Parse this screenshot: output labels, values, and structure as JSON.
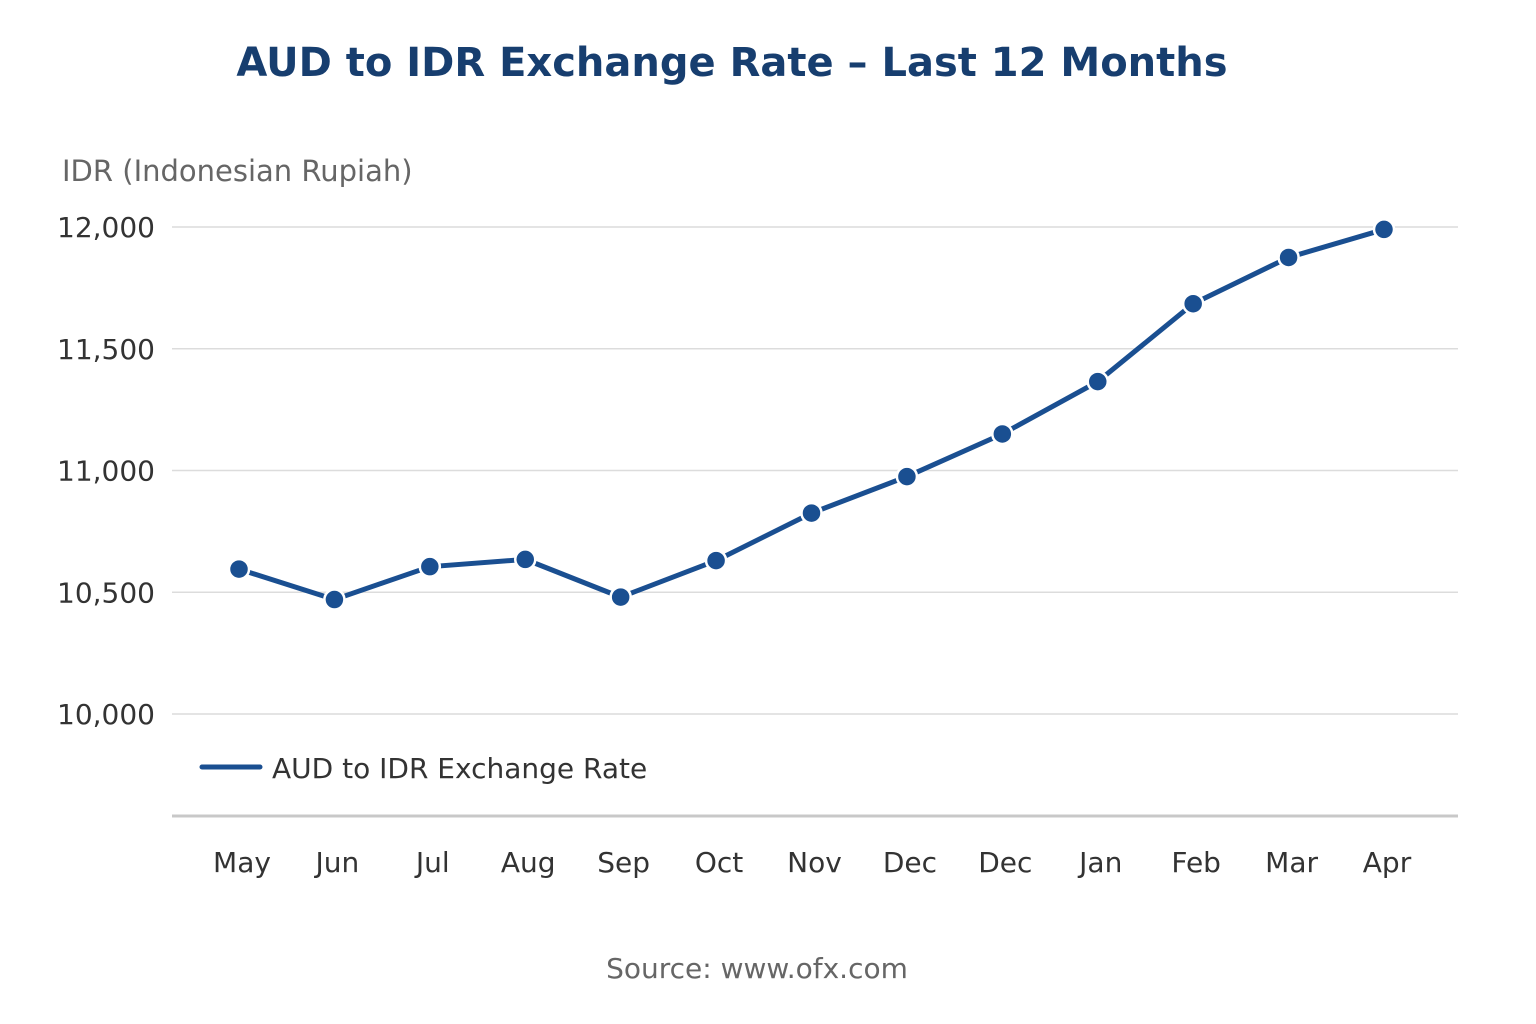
{
  "chart_data": {
    "type": "line",
    "title": "AUD to IDR Exchange Rate – Last 12 Months",
    "ylabel": "IDR (Indonesian Rupiah)",
    "xlabel": "",
    "categories": [
      "May",
      "Jun",
      "Jul",
      "Aug",
      "Sep",
      "Oct",
      "Nov",
      "Dec",
      "Dec",
      "Jan",
      "Feb",
      "Mar",
      "Apr"
    ],
    "series": [
      {
        "name": "AUD to IDR Exchange Rate",
        "color": "#1a4f91",
        "values": [
          10595,
          10470,
          10605,
          10635,
          10480,
          10630,
          10825,
          10975,
          11150,
          11365,
          11685,
          11875,
          11990
        ]
      }
    ],
    "yticks": [
      10000,
      10500,
      11000,
      11500,
      12000
    ],
    "ytick_labels": [
      "10,000",
      "10,500",
      "11,000",
      "11,500",
      "12,000"
    ],
    "ylim": [
      9590,
      12000
    ],
    "grid": true,
    "legend_position": "bottom-left",
    "source": "Source: www.ofx.com"
  }
}
